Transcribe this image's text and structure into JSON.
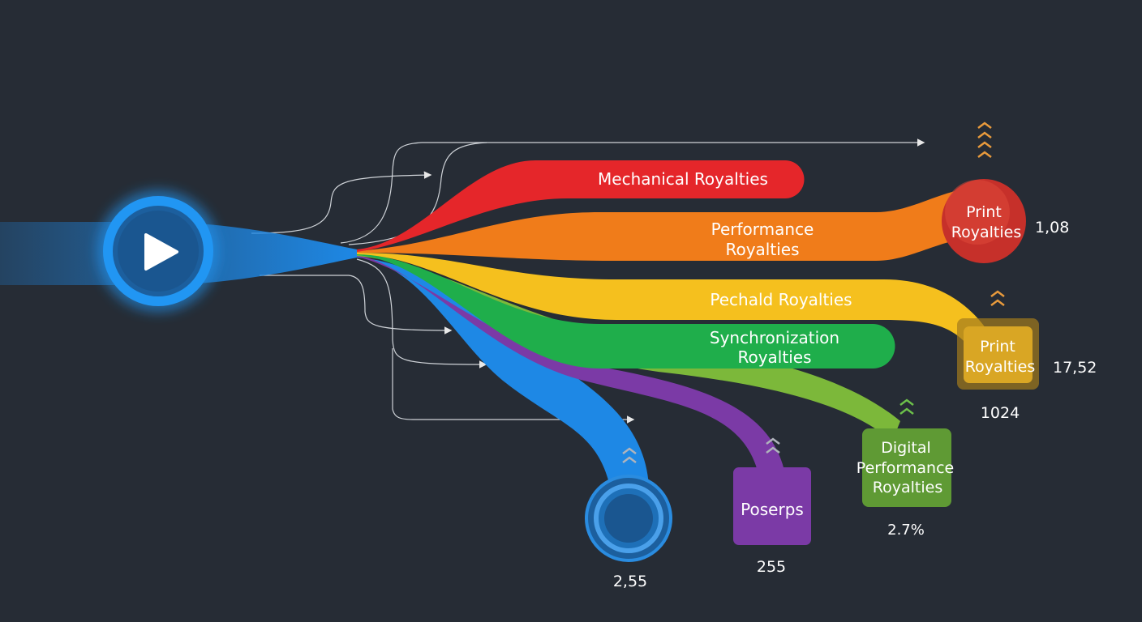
{
  "colors": {
    "background": "#262c35",
    "source": "#1e88e5",
    "mechanical": "#e5262a",
    "performance": "#f07c1a",
    "pechald": "#f5c01e",
    "synchronization": "#1fae4b",
    "digital": "#7cb83a",
    "poserps": "#7b3aa6",
    "blue_branch": "#1e88e5"
  },
  "source": {
    "icon": "play-icon"
  },
  "streams": {
    "mechanical": {
      "label": "Mechanical Royalties"
    },
    "performance": {
      "label_line1": "Performance",
      "label_line2": "Royalties"
    },
    "pechald": {
      "label": "Pechald Royalties"
    },
    "synchronization": {
      "label_line1": "Synchronization",
      "label_line2": "Royalties"
    }
  },
  "endpoints": {
    "print_circle": {
      "line1": "Print",
      "line2": "Royalties",
      "value": "1,08",
      "icon": "chevrons-up-icon"
    },
    "print_box": {
      "line1": "Print",
      "line2": "Royalties",
      "value": "17,52",
      "value2": "1024",
      "icon": "chevrons-up-icon"
    },
    "digital": {
      "line1": "Digital",
      "line2": "Performance",
      "line3": "Royalties",
      "value": "2.7%",
      "icon": "chevrons-up-icon"
    },
    "poserps": {
      "label": "Poserps",
      "value": "255",
      "icon": "chevrons-up-icon"
    },
    "blue_circle": {
      "value": "2,55",
      "icon": "chevrons-up-icon"
    }
  }
}
